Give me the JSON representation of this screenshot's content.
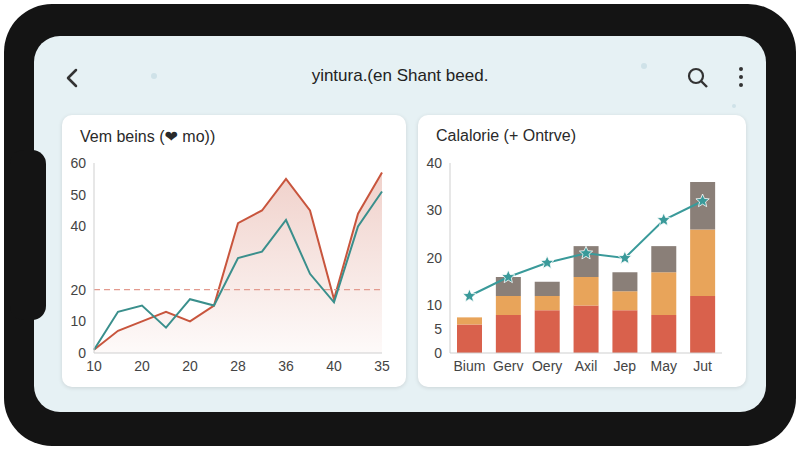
{
  "header": {
    "title": "yintura.(en Shant beed."
  },
  "chart_data": [
    {
      "type": "line",
      "title": "Vem beins (❤ mo))",
      "categories": [
        "10",
        null,
        "20",
        null,
        "20",
        null,
        "28",
        null,
        "36",
        null,
        "40",
        null,
        "35"
      ],
      "series": [
        {
          "type": "area",
          "color": "#c8553d",
          "values": [
            1,
            7,
            10,
            13,
            10,
            15,
            41,
            45,
            55,
            45,
            17,
            44,
            57
          ]
        },
        {
          "type": "line",
          "color": "#3a8f8c",
          "values": [
            1,
            13,
            15,
            8,
            17,
            15,
            30,
            32,
            42,
            25,
            16,
            40,
            51
          ]
        }
      ],
      "reference_line": 20,
      "ylim": [
        0,
        60
      ],
      "yticks": [
        0,
        10,
        20,
        40,
        50,
        60
      ],
      "grid": false
    },
    {
      "type": "bar",
      "title": "Calalorie (+ Ontrve)",
      "categories": [
        "Bium",
        "Gerv",
        "Oery",
        "Axil",
        "Jep",
        "May",
        "Jut"
      ],
      "stacked": true,
      "series": [
        {
          "type": "bar",
          "color": "#d9614c",
          "values": [
            6,
            8,
            9,
            10,
            9,
            8,
            12
          ]
        },
        {
          "type": "bar",
          "color": "#e8a45a",
          "values": [
            1.5,
            4,
            3,
            6,
            4,
            9,
            14
          ]
        },
        {
          "type": "bar",
          "color": "#8a7f78",
          "values": [
            0,
            4,
            3,
            6.5,
            4,
            5.5,
            10
          ]
        },
        {
          "type": "line",
          "color": "#3a9a9a",
          "marker": "star",
          "values": [
            12,
            16,
            19,
            21,
            20,
            28,
            32
          ]
        }
      ],
      "ylim": [
        0,
        40
      ],
      "yticks": [
        0,
        5,
        10,
        20,
        30,
        40
      ],
      "grid": false
    }
  ]
}
